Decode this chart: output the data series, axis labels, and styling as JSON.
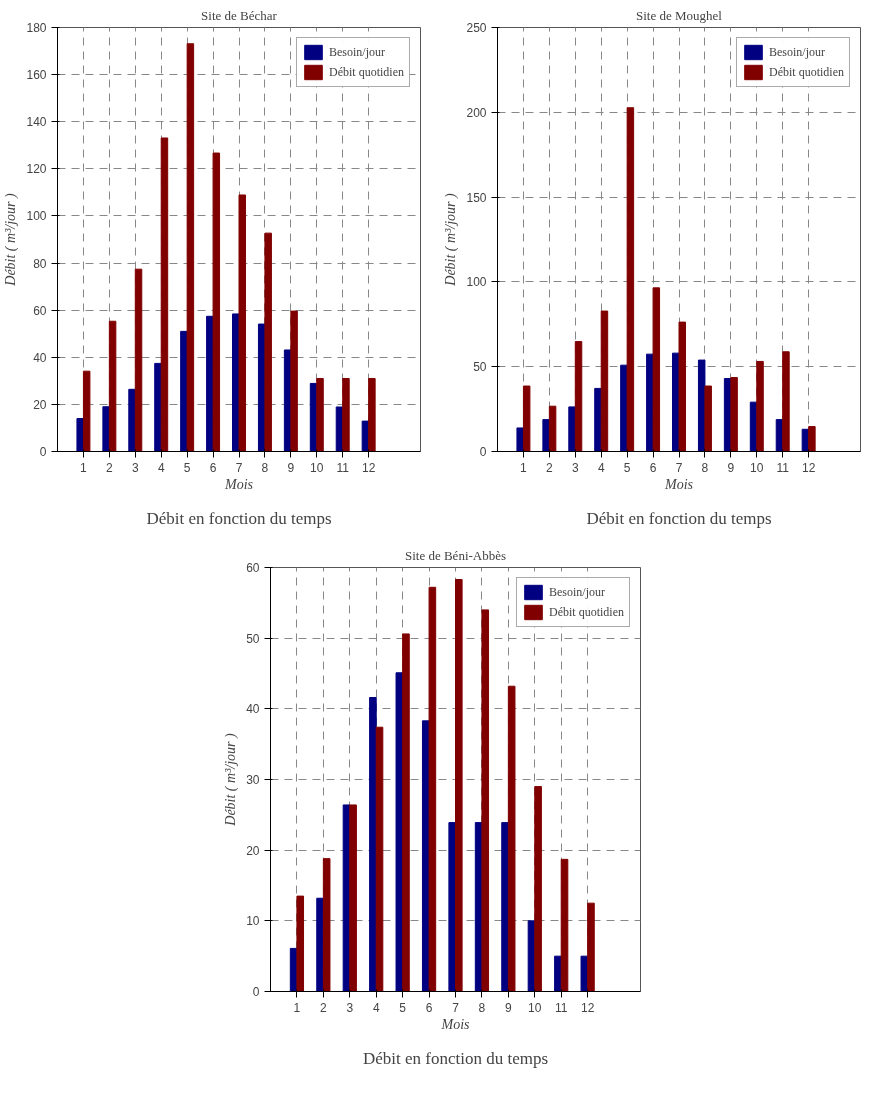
{
  "chart_data": [
    {
      "type": "bar",
      "title": "Site de Béchar",
      "xlabel": "Mois",
      "ylabel": "Débit ( m³/jour )",
      "annotations": [
        "Débit en fonction du temps"
      ],
      "x": [
        1,
        2,
        3,
        4,
        5,
        6,
        7,
        8,
        9,
        10,
        11,
        12
      ],
      "xlim": [
        0,
        14
      ],
      "xticks": [
        1,
        2,
        3,
        4,
        5,
        6,
        7,
        8,
        9,
        10,
        11,
        12
      ],
      "ylim": [
        0,
        180
      ],
      "yticks": [
        0,
        20,
        40,
        60,
        80,
        100,
        120,
        140,
        160,
        180
      ],
      "grid": true,
      "legend": "top right",
      "series": [
        {
          "name": "Besoin/jour",
          "color": "#000080",
          "values": [
            14,
            19,
            26.4,
            37.4,
            51,
            57.4,
            58.4,
            54.1,
            43.1,
            28.9,
            18.9,
            12.9
          ]
        },
        {
          "name": "Débit quotidien",
          "color": "#800000",
          "values": [
            34.1,
            55.3,
            77.4,
            133.1,
            173.1,
            126.7,
            108.9,
            92.7,
            59.6,
            31,
            31,
            31
          ]
        }
      ]
    },
    {
      "type": "bar",
      "title": "Site de Moughel",
      "xlabel": "Mois",
      "ylabel": "Débit ( m³/jour )",
      "annotations": [
        "Débit en fonction du temps"
      ],
      "x": [
        1,
        2,
        3,
        4,
        5,
        6,
        7,
        8,
        9,
        10,
        11,
        12
      ],
      "xlim": [
        0,
        14
      ],
      "xticks": [
        1,
        2,
        3,
        4,
        5,
        6,
        7,
        8,
        9,
        10,
        11,
        12
      ],
      "ylim": [
        0,
        250
      ],
      "yticks": [
        0,
        50,
        100,
        150,
        200,
        250
      ],
      "grid": true,
      "legend": "top right",
      "series": [
        {
          "name": "Besoin/jour",
          "color": "#000080",
          "values": [
            13.9,
            18.8,
            26.3,
            37.2,
            50.9,
            57.4,
            58,
            53.9,
            43,
            29.1,
            18.8,
            13.1
          ]
        },
        {
          "name": "Débit quotidien",
          "color": "#800000",
          "values": [
            38.6,
            26.7,
            64.8,
            82.8,
            202.7,
            96.5,
            76.3,
            38.6,
            43.6,
            53.1,
            58.8,
            14.7
          ]
        }
      ]
    },
    {
      "type": "bar",
      "title": "Site de Béni-Abbès",
      "xlabel": "Mois",
      "ylabel": "Débit ( m³/jour )",
      "annotations": [
        "Débit en fonction du temps"
      ],
      "x": [
        1,
        2,
        3,
        4,
        5,
        6,
        7,
        8,
        9,
        10,
        11,
        12
      ],
      "xlim": [
        0,
        14
      ],
      "xticks": [
        1,
        2,
        3,
        4,
        5,
        6,
        7,
        8,
        9,
        10,
        11,
        12
      ],
      "ylim": [
        0,
        60
      ],
      "yticks": [
        0,
        10,
        20,
        30,
        40,
        50,
        60
      ],
      "grid": true,
      "legend": "top right",
      "series": [
        {
          "name": "Besoin/jour",
          "color": "#000080",
          "values": [
            6.1,
            13.2,
            26.4,
            41.6,
            45.1,
            38.3,
            23.9,
            23.9,
            23.9,
            10,
            5,
            5
          ]
        },
        {
          "name": "Débit quotidien",
          "color": "#800000",
          "values": [
            13.5,
            18.8,
            26.4,
            37.4,
            50.6,
            57.2,
            58.3,
            54,
            43.2,
            29,
            18.7,
            12.5
          ]
        }
      ]
    }
  ]
}
